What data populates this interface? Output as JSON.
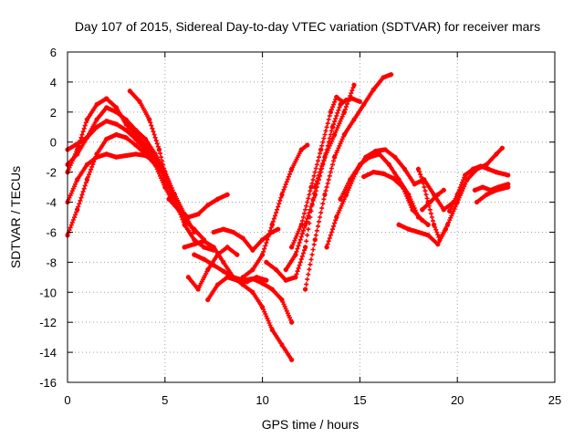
{
  "chart_data": {
    "type": "scatter",
    "title": "Day 107 of 2015, Sidereal Day-to-day VTEC variation (SDTVAR) for receiver mars",
    "xlabel": "GPS time / hours",
    "ylabel": "SDTVAR / TECUs",
    "xlim": [
      0,
      25
    ],
    "ylim": [
      -16,
      6
    ],
    "xticks": [
      0,
      5,
      10,
      15,
      20,
      25
    ],
    "yticks": [
      -16,
      -14,
      -12,
      -10,
      -8,
      -6,
      -4,
      -2,
      0,
      2,
      4,
      6
    ],
    "grid": true,
    "marker": "plus",
    "color": "#ff0000",
    "series": [
      {
        "values": [
          [
            0,
            -0.5
          ],
          [
            0.4,
            -0.2
          ],
          [
            1.0,
            0.3
          ],
          [
            1.5,
            1.0
          ],
          [
            2.0,
            1.4
          ],
          [
            2.5,
            1.2
          ],
          [
            3.0,
            0.8
          ],
          [
            3.5,
            0.2
          ],
          [
            4.0,
            -0.5
          ],
          [
            4.5,
            -1.2
          ],
          [
            5.0,
            -2.5
          ],
          [
            5.5,
            -4.0
          ],
          [
            6.0,
            -5.2
          ],
          [
            6.5,
            -5.8
          ],
          [
            7.0,
            -6.5
          ]
        ]
      },
      {
        "values": [
          [
            0,
            -1.5
          ],
          [
            0.5,
            -0.8
          ],
          [
            1.0,
            0.3
          ],
          [
            1.5,
            1.5
          ],
          [
            2.0,
            2.3
          ],
          [
            2.5,
            2.0
          ],
          [
            3.0,
            1.5
          ],
          [
            3.5,
            0.8
          ],
          [
            4.0,
            0.2
          ],
          [
            4.5,
            -0.8
          ],
          [
            5.0,
            -2.0
          ],
          [
            5.5,
            -3.5
          ],
          [
            6.0,
            -4.8
          ],
          [
            6.5,
            -6.0
          ]
        ]
      },
      {
        "values": [
          [
            0,
            -2.0
          ],
          [
            0.5,
            -0.5
          ],
          [
            1.0,
            1.5
          ],
          [
            1.5,
            2.5
          ],
          [
            2.0,
            2.9
          ],
          [
            2.5,
            2.3
          ],
          [
            3.0,
            1.2
          ],
          [
            3.5,
            0.5
          ],
          [
            4.0,
            -0.2
          ],
          [
            4.5,
            -1.0
          ],
          [
            5.0,
            -2.2
          ]
        ]
      },
      {
        "values": [
          [
            0,
            -4.0
          ],
          [
            0.5,
            -2.5
          ],
          [
            1.0,
            -1.5
          ],
          [
            1.5,
            -1.0
          ],
          [
            2.0,
            -0.8
          ],
          [
            2.5,
            -1.0
          ],
          [
            3.0,
            -0.9
          ],
          [
            3.5,
            -0.8
          ],
          [
            4.0,
            -0.9
          ],
          [
            4.5,
            -1.3
          ],
          [
            5.0,
            -2.0
          ]
        ]
      },
      {
        "values": [
          [
            0,
            -6.2
          ],
          [
            0.5,
            -4.5
          ],
          [
            1.0,
            -2.5
          ],
          [
            1.5,
            -0.8
          ],
          [
            2.0,
            0.2
          ],
          [
            2.5,
            0.5
          ],
          [
            3.0,
            0.3
          ],
          [
            3.5,
            -0.2
          ],
          [
            4.0,
            -0.8
          ],
          [
            4.5,
            -1.5
          ],
          [
            5.0,
            -3.0
          ],
          [
            5.5,
            -4.2
          ],
          [
            6.0,
            -5.0
          ]
        ]
      },
      {
        "values": [
          [
            3.2,
            3.4
          ],
          [
            3.7,
            2.7
          ],
          [
            4.2,
            1.5
          ],
          [
            4.7,
            -0.5
          ],
          [
            5.0,
            -2.0
          ],
          [
            5.5,
            -3.8
          ],
          [
            6.0,
            -5.5
          ],
          [
            6.5,
            -6.5
          ],
          [
            7.0,
            -7.0
          ],
          [
            7.5,
            -7.2
          ]
        ]
      },
      {
        "values": [
          [
            5.2,
            -3.8
          ],
          [
            5.7,
            -4.5
          ],
          [
            6.2,
            -5.0
          ],
          [
            6.7,
            -4.8
          ],
          [
            7.2,
            -4.2
          ],
          [
            7.7,
            -3.8
          ],
          [
            8.2,
            -3.5
          ]
        ]
      },
      {
        "values": [
          [
            6.0,
            -7.0
          ],
          [
            6.5,
            -6.8
          ],
          [
            7.0,
            -6.6
          ],
          [
            7.5,
            -7.0
          ],
          [
            8.0,
            -8.0
          ],
          [
            8.5,
            -9.0
          ],
          [
            9.0,
            -9.5
          ],
          [
            9.5,
            -10.0
          ],
          [
            10.0,
            -11.0
          ],
          [
            10.5,
            -12.5
          ],
          [
            11.0,
            -13.5
          ],
          [
            11.5,
            -14.5
          ]
        ]
      },
      {
        "values": [
          [
            6.2,
            -9.0
          ],
          [
            6.7,
            -9.8
          ],
          [
            7.2,
            -8.5
          ],
          [
            7.7,
            -7.5
          ],
          [
            8.2,
            -7.0
          ],
          [
            8.7,
            -7.5
          ]
        ]
      },
      {
        "values": [
          [
            7.2,
            -10.5
          ],
          [
            7.7,
            -9.5
          ],
          [
            8.2,
            -9.0
          ],
          [
            8.7,
            -9.2
          ],
          [
            9.2,
            -9.3
          ],
          [
            9.7,
            -9.0
          ],
          [
            10.2,
            -9.2
          ]
        ]
      },
      {
        "values": [
          [
            6.5,
            -7.5
          ],
          [
            7.0,
            -7.8
          ],
          [
            7.5,
            -8.2
          ],
          [
            8.0,
            -8.6
          ],
          [
            8.5,
            -9.0
          ],
          [
            9.0,
            -9.2
          ],
          [
            9.5,
            -9.1
          ],
          [
            10.0,
            -9.4
          ],
          [
            10.5,
            -9.8
          ],
          [
            11.0,
            -10.5
          ],
          [
            11.5,
            -12.0
          ]
        ]
      },
      {
        "values": [
          [
            7.5,
            -6.0
          ],
          [
            8.0,
            -5.8
          ],
          [
            8.5,
            -6.0
          ],
          [
            9.0,
            -6.4
          ],
          [
            9.5,
            -7.2
          ],
          [
            10.0,
            -6.5
          ],
          [
            10.5,
            -6.0
          ],
          [
            10.8,
            -5.8
          ]
        ]
      },
      {
        "values": [
          [
            9.0,
            -9.0
          ],
          [
            9.5,
            -8.5
          ],
          [
            10.0,
            -7.5
          ],
          [
            10.5,
            -5.5
          ],
          [
            11.0,
            -3.5
          ],
          [
            11.5,
            -1.8
          ],
          [
            12.0,
            -0.5
          ],
          [
            12.3,
            -0.2
          ]
        ]
      },
      {
        "values": [
          [
            10.2,
            -8.0
          ],
          [
            10.7,
            -8.5
          ],
          [
            11.2,
            -9.2
          ],
          [
            11.7,
            -9.0
          ],
          [
            12.2,
            -7.0
          ],
          [
            12.7,
            -3.0
          ],
          [
            13.2,
            -1.0
          ],
          [
            13.7,
            0.5
          ],
          [
            14.2,
            2.0
          ],
          [
            14.7,
            3.8
          ]
        ]
      },
      {
        "values": [
          [
            11.2,
            -8.5
          ],
          [
            11.7,
            -7.5
          ],
          [
            12.2,
            -5.5
          ],
          [
            12.7,
            -3.5
          ],
          [
            13.2,
            -1.0
          ],
          [
            13.6,
            1.0
          ],
          [
            14.0,
            2.5
          ],
          [
            14.3,
            2.8
          ],
          [
            14.6,
            2.9
          ],
          [
            15.0,
            2.7
          ]
        ]
      },
      {
        "values": [
          [
            11.5,
            -7.0
          ],
          [
            12.0,
            -5.5
          ],
          [
            12.5,
            -3.0
          ],
          [
            13.0,
            -0.5
          ],
          [
            13.5,
            2.0
          ],
          [
            13.8,
            3.0
          ],
          [
            14.1,
            2.7
          ]
        ]
      },
      {
        "values": [
          [
            12.2,
            -9.8
          ],
          [
            12.7,
            -6.5
          ],
          [
            13.2,
            -3.5
          ],
          [
            13.7,
            -1.0
          ],
          [
            14.2,
            0.5
          ],
          [
            14.7,
            1.5
          ],
          [
            15.2,
            2.5
          ],
          [
            15.7,
            3.5
          ],
          [
            16.2,
            4.3
          ],
          [
            16.6,
            4.5
          ]
        ]
      },
      {
        "values": [
          [
            13.3,
            -7.0
          ],
          [
            13.8,
            -5.0
          ],
          [
            14.3,
            -3.5
          ],
          [
            14.8,
            -2.0
          ],
          [
            15.3,
            -1.0
          ],
          [
            15.8,
            -0.6
          ],
          [
            16.3,
            -0.5
          ],
          [
            16.8,
            -1.0
          ],
          [
            17.3,
            -1.8
          ],
          [
            17.8,
            -2.8
          ],
          [
            18.3,
            -2.5
          ],
          [
            18.8,
            -3.5
          ],
          [
            19.3,
            -4.5
          ],
          [
            19.8,
            -4.0
          ]
        ]
      },
      {
        "values": [
          [
            14.0,
            -3.8
          ],
          [
            14.5,
            -2.5
          ],
          [
            15.0,
            -1.5
          ],
          [
            15.5,
            -1.0
          ],
          [
            16.0,
            -0.8
          ],
          [
            16.5,
            -1.5
          ],
          [
            17.0,
            -2.5
          ],
          [
            17.5,
            -3.5
          ],
          [
            18.0,
            -5.0
          ],
          [
            18.5,
            -5.5
          ]
        ]
      },
      {
        "values": [
          [
            15.2,
            -2.3
          ],
          [
            15.7,
            -2.0
          ],
          [
            16.2,
            -2.1
          ],
          [
            16.7,
            -2.4
          ],
          [
            17.2,
            -3.0
          ],
          [
            17.7,
            -4.5
          ],
          [
            18.2,
            -5.2
          ]
        ]
      },
      {
        "values": [
          [
            17.0,
            -5.5
          ],
          [
            17.5,
            -5.8
          ],
          [
            18.0,
            -6.0
          ],
          [
            18.5,
            -6.2
          ],
          [
            19.0,
            -6.8
          ],
          [
            19.5,
            -5.5
          ],
          [
            20.0,
            -4.0
          ],
          [
            20.5,
            -2.5
          ],
          [
            21.0,
            -1.8
          ],
          [
            21.5,
            -1.5
          ],
          [
            22.0,
            -0.8
          ],
          [
            22.3,
            -0.4
          ]
        ]
      },
      {
        "values": [
          [
            18.0,
            -1.8
          ],
          [
            18.2,
            -2.5
          ],
          [
            18.5,
            -4.0
          ],
          [
            18.8,
            -5.5
          ],
          [
            19.1,
            -6.5
          ],
          [
            19.4,
            -5.8
          ]
        ]
      },
      {
        "values": [
          [
            18.2,
            -4.5
          ],
          [
            18.6,
            -4.0
          ],
          [
            19.0,
            -3.5
          ],
          [
            19.3,
            -3.2
          ]
        ]
      },
      {
        "values": [
          [
            19.6,
            -4.6
          ],
          [
            20.0,
            -3.5
          ],
          [
            20.4,
            -2.2
          ],
          [
            20.8,
            -1.8
          ],
          [
            21.2,
            -1.6
          ],
          [
            21.6,
            -1.8
          ],
          [
            22.0,
            -2.0
          ],
          [
            22.6,
            -2.2
          ]
        ]
      },
      {
        "values": [
          [
            20.9,
            -3.2
          ],
          [
            21.3,
            -3.0
          ],
          [
            21.7,
            -3.2
          ],
          [
            22.1,
            -3.0
          ],
          [
            22.6,
            -2.8
          ]
        ]
      },
      {
        "values": [
          [
            21.0,
            -4.0
          ],
          [
            21.5,
            -3.5
          ],
          [
            22.0,
            -3.2
          ],
          [
            22.6,
            -3.0
          ]
        ]
      }
    ]
  }
}
